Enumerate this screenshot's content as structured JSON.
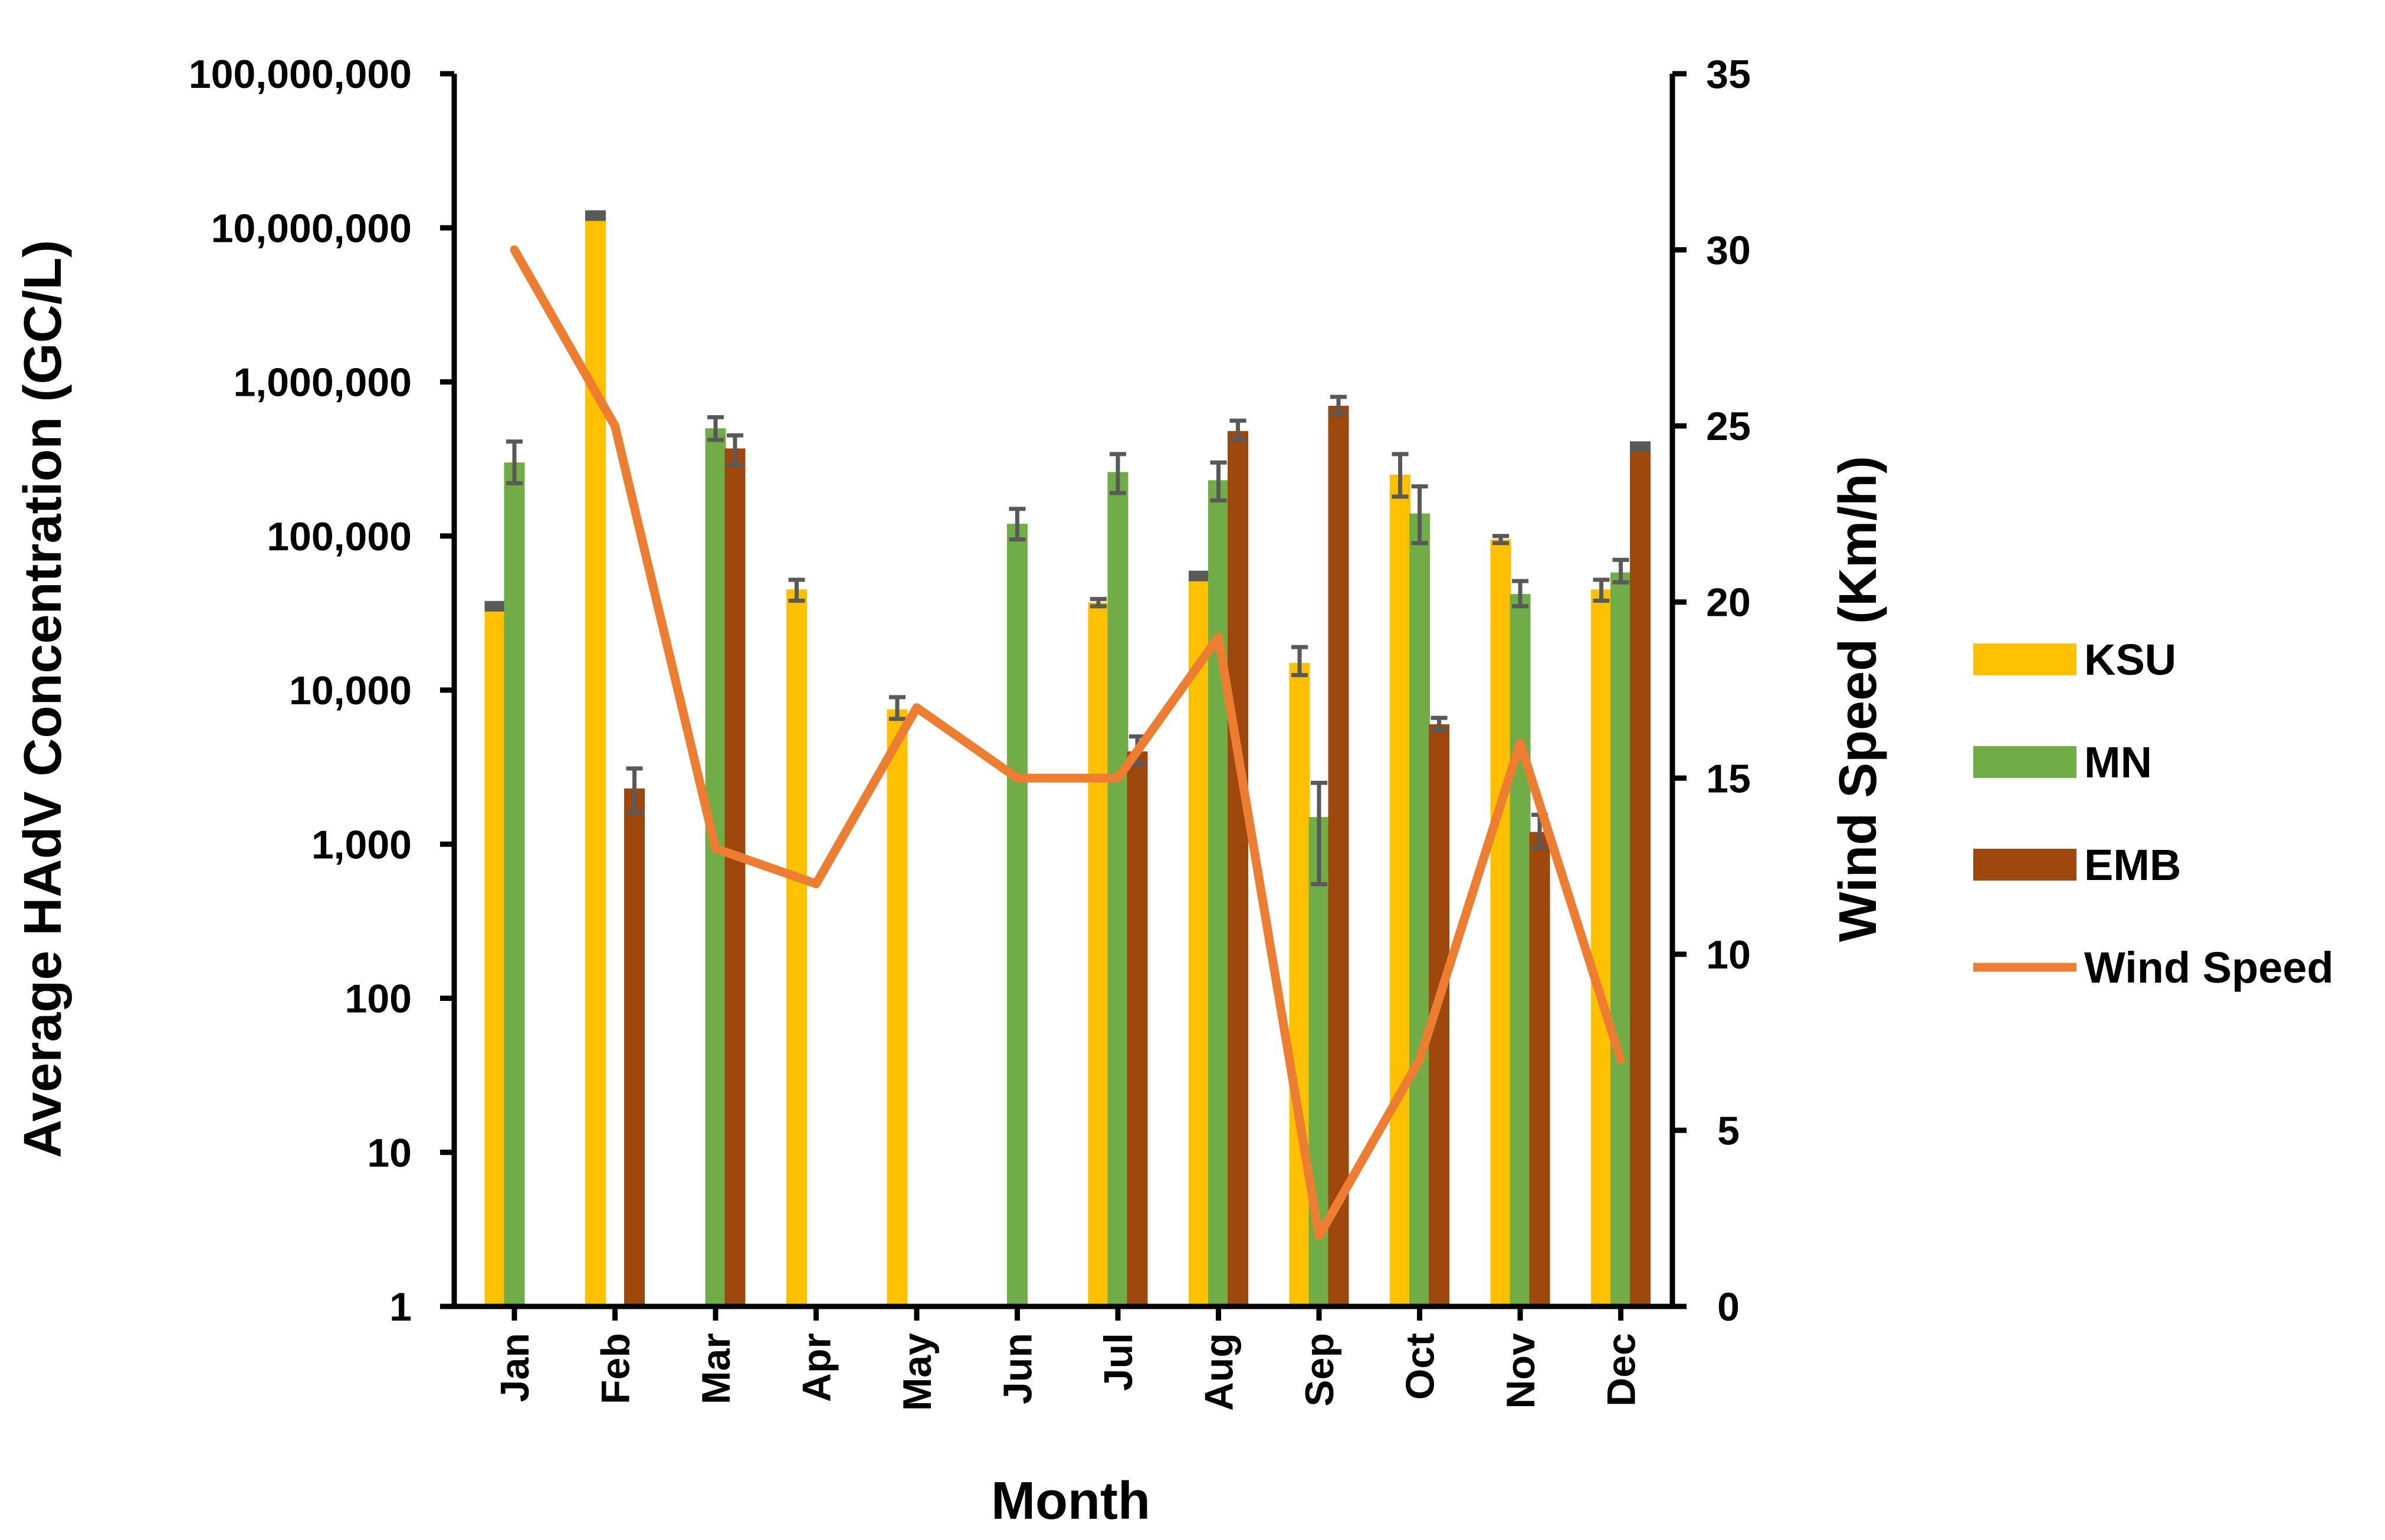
{
  "chart_data": {
    "type": "bar+line",
    "title": "",
    "xlabel": "Month",
    "ylabel_left": "Average HAdV Concentration (GC/L)",
    "ylabel_right": "Wind Speed (Km/h)",
    "y_left_scale": "log",
    "y_left_range": [
      1,
      100000000
    ],
    "y_left_ticks": [
      {
        "value": 1,
        "label": "1"
      },
      {
        "value": 10,
        "label": "10"
      },
      {
        "value": 100,
        "label": "100"
      },
      {
        "value": 1000,
        "label": "1,000"
      },
      {
        "value": 10000,
        "label": "10,000"
      },
      {
        "value": 100000,
        "label": "100,000"
      },
      {
        "value": 1000000,
        "label": "1,000,000"
      },
      {
        "value": 10000000,
        "label": "10,000,000"
      },
      {
        "value": 100000000,
        "label": "100,000,000"
      }
    ],
    "y_right_range": [
      0,
      35
    ],
    "y_right_ticks": [
      {
        "value": 0,
        "label": "0"
      },
      {
        "value": 5,
        "label": "5"
      },
      {
        "value": 10,
        "label": "10"
      },
      {
        "value": 15,
        "label": "15"
      },
      {
        "value": 20,
        "label": "20"
      },
      {
        "value": 25,
        "label": "25"
      },
      {
        "value": 30,
        "label": "30"
      },
      {
        "value": 35,
        "label": "35"
      }
    ],
    "categories": [
      "Jan",
      "Feb",
      "Mar",
      "Apr",
      "May",
      "Jun",
      "Jul",
      "Aug",
      "Sep",
      "Oct",
      "Nov",
      "Dec"
    ],
    "bar_series": [
      {
        "name": "KSU",
        "color": "#FFC000",
        "axis": "left",
        "values": [
          35000,
          12000000,
          null,
          45000,
          7500,
          null,
          37000,
          55000,
          15000,
          250000,
          95000,
          45000
        ],
        "err_low": [
          null,
          null,
          null,
          38000,
          6500,
          null,
          35000,
          null,
          12500,
          180000,
          90000,
          38000
        ],
        "err_high": [
          null,
          null,
          null,
          52000,
          9000,
          null,
          39000,
          null,
          19000,
          340000,
          100000,
          52000
        ]
      },
      {
        "name": "MN",
        "color": "#70AD47",
        "axis": "left",
        "values": [
          300000,
          null,
          500000,
          null,
          null,
          120000,
          260000,
          230000,
          1500,
          140000,
          42000,
          58000
        ],
        "err_low": [
          220000,
          null,
          420000,
          null,
          null,
          95000,
          190000,
          170000,
          550,
          90000,
          35000,
          50000
        ],
        "err_high": [
          410000,
          null,
          590000,
          null,
          null,
          150000,
          340000,
          300000,
          2500,
          210000,
          51000,
          70000
        ]
      },
      {
        "name": "EMB",
        "color": "#9E480E",
        "axis": "left",
        "values": [
          null,
          2300,
          370000,
          null,
          null,
          null,
          4000,
          480000,
          700000,
          6000,
          1200,
          380000
        ],
        "err_low": [
          null,
          1600,
          290000,
          null,
          null,
          null,
          3300,
          420000,
          620000,
          5500,
          950,
          null
        ],
        "err_high": [
          null,
          3100,
          450000,
          null,
          null,
          null,
          5000,
          560000,
          800000,
          6600,
          1550,
          null
        ]
      }
    ],
    "line_series": [
      {
        "name": "Wind Speed",
        "color": "#ED7D31",
        "axis": "right",
        "values": [
          30,
          25,
          13,
          12,
          17,
          15,
          15,
          19,
          2,
          7,
          16,
          7
        ]
      }
    ],
    "legend": {
      "position": "right",
      "entries": [
        {
          "label": "KSU",
          "color": "#FFC000",
          "kind": "bar"
        },
        {
          "label": "MN",
          "color": "#70AD47",
          "kind": "bar"
        },
        {
          "label": "EMB",
          "color": "#9E480E",
          "kind": "bar"
        },
        {
          "label": "Wind Speed",
          "color": "#ED7D31",
          "kind": "line"
        }
      ]
    },
    "error_bar_color": "#595959",
    "grid": false
  }
}
